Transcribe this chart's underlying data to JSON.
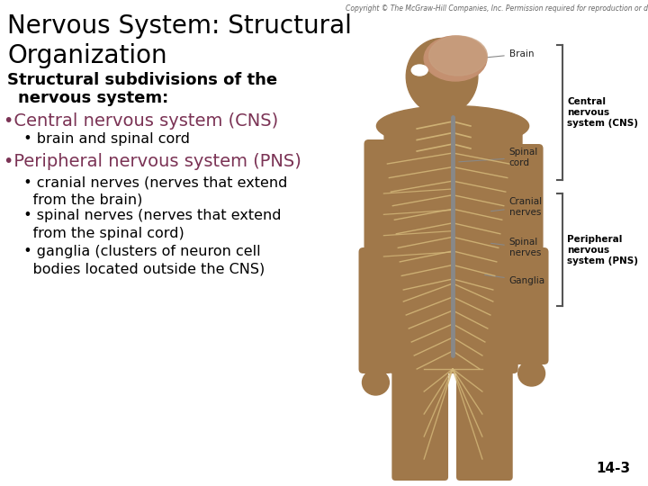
{
  "background_color": "#ffffff",
  "title_line1": "Nervous System: Structural",
  "title_line2": "Organization",
  "title_fontsize": 20,
  "title_color": "#000000",
  "subtitle_line1": "Structural subdivisions of the",
  "subtitle_line2": "  nervous system:",
  "subtitle_fontsize": 13,
  "subtitle_color": "#000000",
  "bullet1_text": "•Central nervous system (CNS)",
  "bullet1_color": "#7b3355",
  "bullet1_fontsize": 14,
  "sub_bullet1": "  • brain and spinal cord",
  "sub_bullet1_color": "#000000",
  "sub_bullet1_fontsize": 11.5,
  "bullet2_text": "•Peripheral nervous system (PNS)",
  "bullet2_color": "#7b3355",
  "bullet2_fontsize": 14,
  "sub_bullets2": [
    "  • cranial nerves (nerves that extend\n    from the brain)",
    "  • spinal nerves (nerves that extend\n    from the spinal cord)",
    "  • ganglia (clusters of neuron cell\n    bodies located outside the CNS)"
  ],
  "sub_bullets2_color": "#000000",
  "sub_bullets2_fontsize": 11.5,
  "copyright_text": "Copyright © The McGraw-Hill Companies, Inc. Permission required for reproduction or display.",
  "copyright_fontsize": 5.5,
  "page_number": "14-3",
  "page_number_fontsize": 11,
  "body_color": "#a0784a",
  "body_dark": "#7a5530",
  "nerve_color": "#d4b87a",
  "spine_color": "#888888",
  "label_color": "#222222",
  "label_fontsize": 7.5,
  "bracket_color": "#555555"
}
